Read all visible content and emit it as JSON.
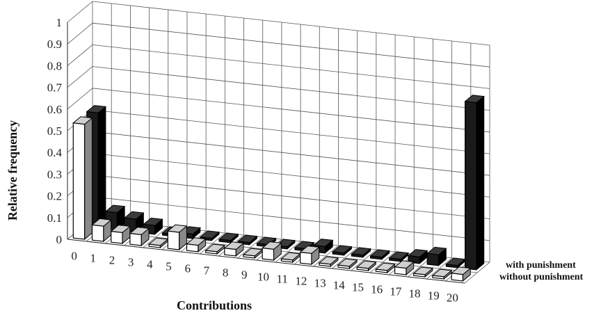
{
  "chart_data": {
    "type": "bar",
    "variant": "3d-grouped",
    "xlabel": "Contributions",
    "ylabel": "Relative frequency",
    "ylim": [
      0,
      1
    ],
    "y_ticks": [
      "0",
      "0.1",
      "0.2",
      "0.3",
      "0.4",
      "0.5",
      "0.6",
      "0.7",
      "0.8",
      "0.9",
      "1"
    ],
    "categories": [
      "0",
      "1",
      "2",
      "3",
      "4",
      "5",
      "6",
      "7",
      "8",
      "9",
      "10",
      "11",
      "12",
      "13",
      "14",
      "15",
      "16",
      "17",
      "18",
      "19",
      "20"
    ],
    "grid": true,
    "series": [
      {
        "name": "with punishment",
        "color": "#1a1a1a",
        "values": [
          0.53,
          0.08,
          0.06,
          0.04,
          0.01,
          0.02,
          0.01,
          0.01,
          0.01,
          0.01,
          0.01,
          0.01,
          0.03,
          0.01,
          0.01,
          0.01,
          0.01,
          0.03,
          0.05,
          0.01,
          0.77
        ]
      },
      {
        "name": "without punishment",
        "color": "#ffffff",
        "values": [
          0.53,
          0.07,
          0.05,
          0.05,
          0.01,
          0.08,
          0.03,
          0.01,
          0.03,
          0.01,
          0.05,
          0.01,
          0.05,
          0.01,
          0.01,
          0.01,
          0.01,
          0.03,
          0.01,
          0.01,
          0.03
        ]
      }
    ]
  }
}
